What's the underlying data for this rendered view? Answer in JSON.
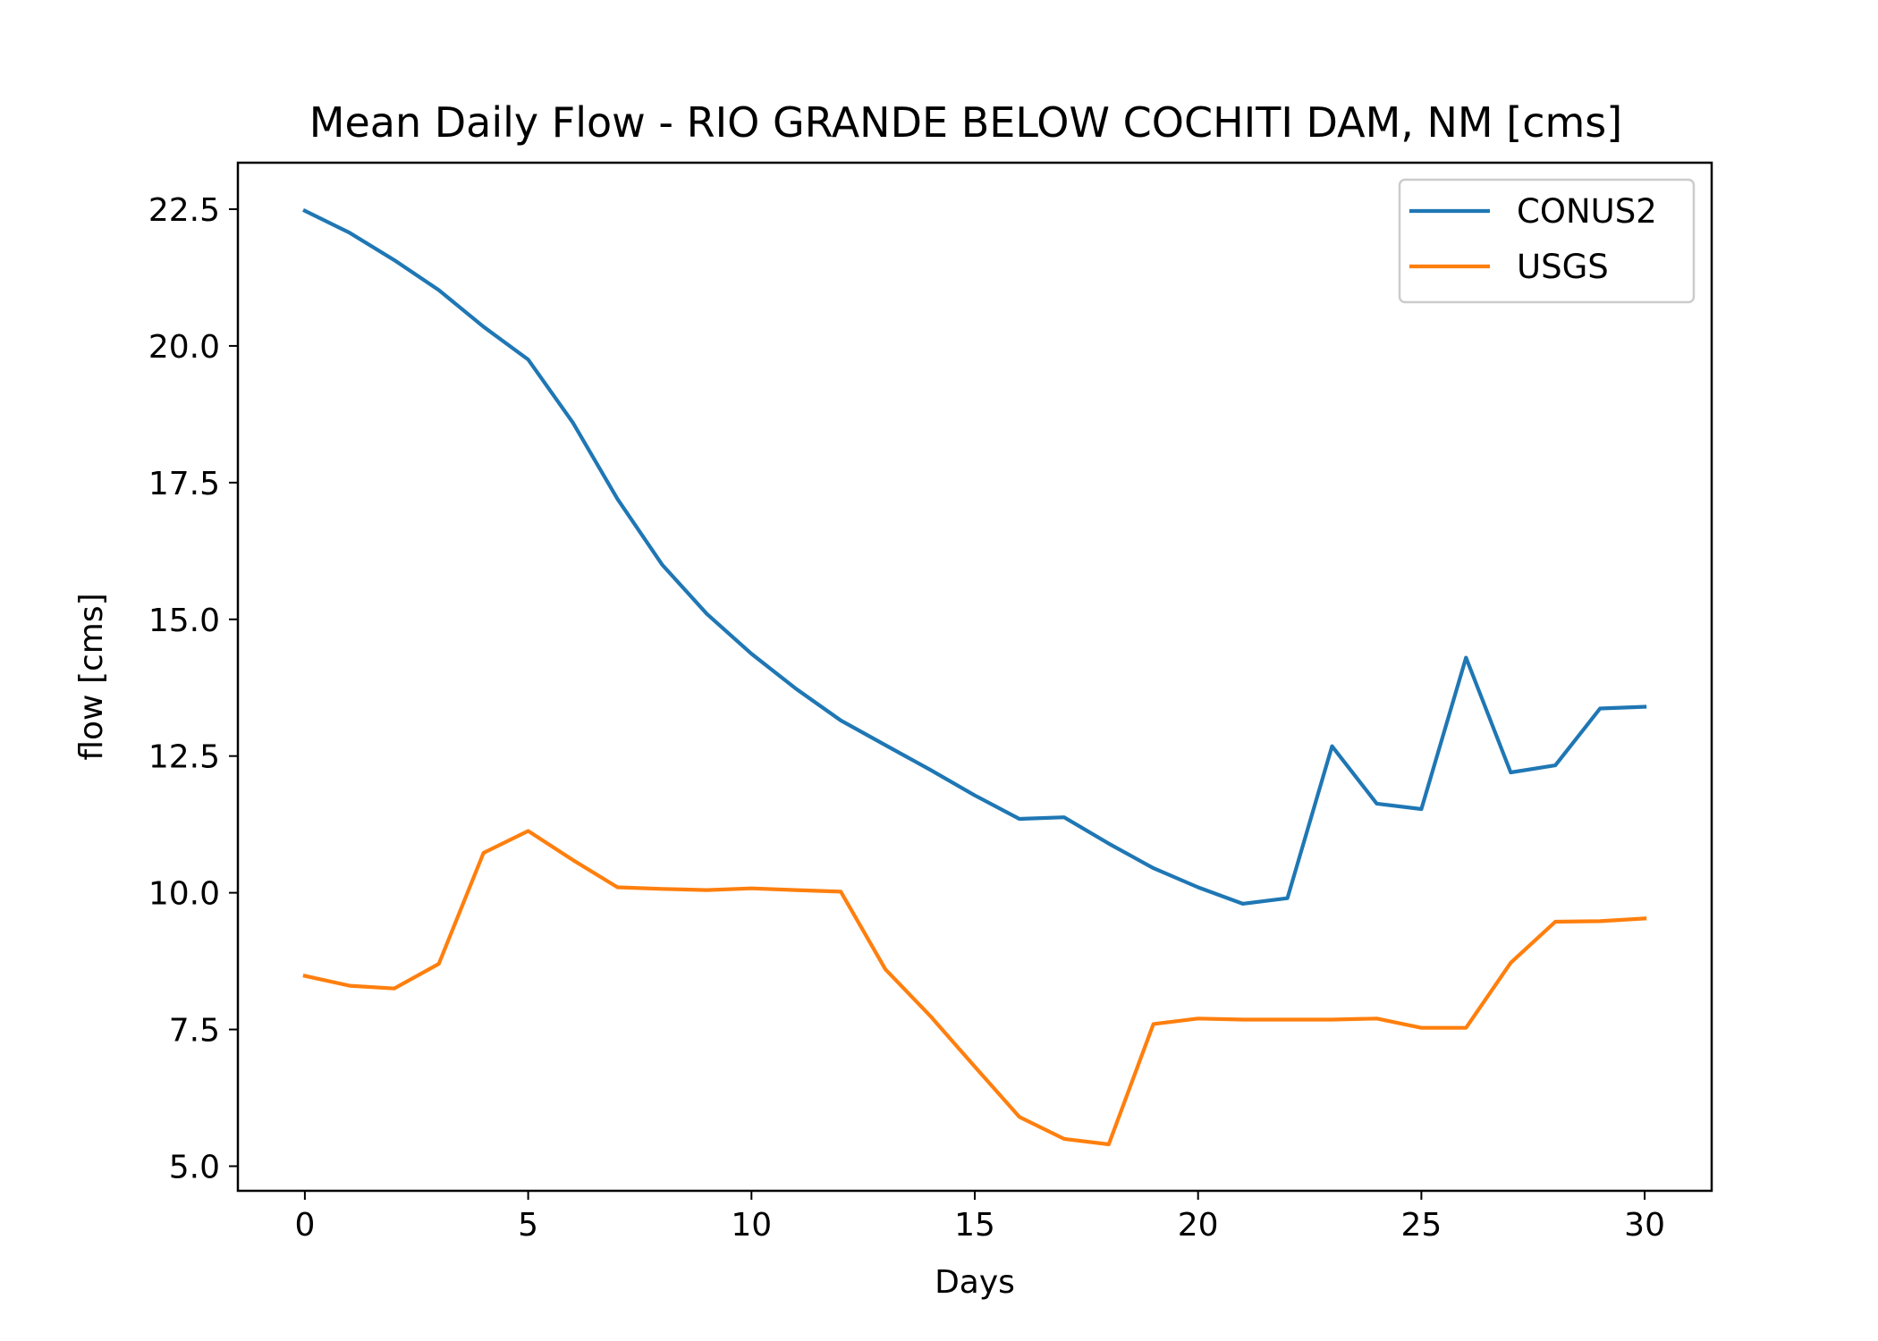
{
  "chart_data": {
    "type": "line",
    "title": "Mean Daily Flow - RIO GRANDE BELOW COCHITI DAM, NM [cms]",
    "xlabel": "Days",
    "ylabel": "flow [cms]",
    "xlim": [
      -1.5,
      31.5
    ],
    "ylim": [
      4.55,
      23.35
    ],
    "xticks": [
      0,
      5,
      10,
      15,
      20,
      25,
      30
    ],
    "yticks": [
      5.0,
      7.5,
      10.0,
      12.5,
      15.0,
      17.5,
      20.0,
      22.5
    ],
    "grid": false,
    "legend_position": "top-right",
    "x": [
      0,
      1,
      2,
      3,
      4,
      5,
      6,
      7,
      8,
      9,
      10,
      11,
      12,
      13,
      14,
      15,
      16,
      17,
      18,
      19,
      20,
      21,
      22,
      23,
      24,
      25,
      26,
      27,
      28,
      29,
      30
    ],
    "series": [
      {
        "name": "CONUS2",
        "color": "#1f77b4",
        "values": [
          22.47,
          22.07,
          21.57,
          21.02,
          20.35,
          19.75,
          18.6,
          17.2,
          16.0,
          15.1,
          14.37,
          13.73,
          13.15,
          12.7,
          12.25,
          11.78,
          11.35,
          11.38,
          10.9,
          10.45,
          10.1,
          9.8,
          9.9,
          12.68,
          11.63,
          11.53,
          14.3,
          12.2,
          12.33,
          13.37,
          13.4
        ]
      },
      {
        "name": "USGS",
        "color": "#ff7f0e",
        "values": [
          8.48,
          8.3,
          8.25,
          8.7,
          10.73,
          11.13,
          10.6,
          10.1,
          10.07,
          10.05,
          10.08,
          10.05,
          10.02,
          8.6,
          7.75,
          6.82,
          5.9,
          5.5,
          5.4,
          7.6,
          7.7,
          7.68,
          7.68,
          7.68,
          7.7,
          7.53,
          7.53,
          8.72,
          9.47,
          9.48,
          9.53
        ]
      }
    ]
  }
}
